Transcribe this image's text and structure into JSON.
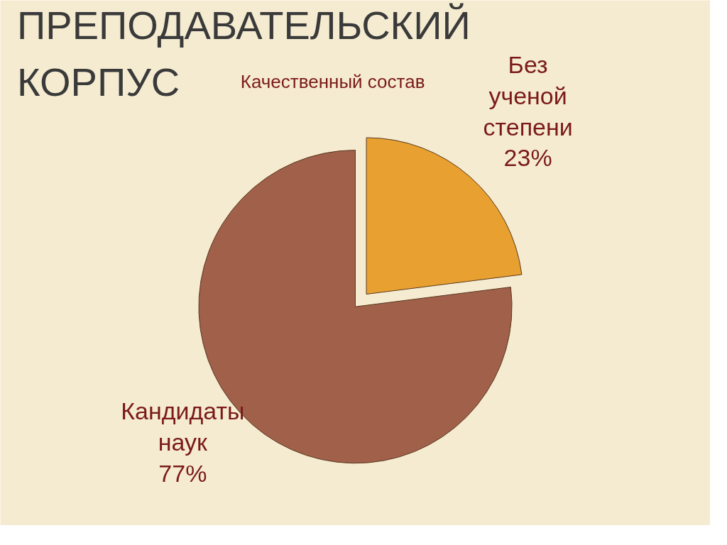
{
  "chart_data": {
    "type": "pie",
    "title": "ПРЕПОДАВАТЕЛЬСКИЙ КОРПУС",
    "subtitle": "Качественный состав",
    "categories": [
      "Без ученой степени",
      "Кандидаты наук"
    ],
    "values": [
      23,
      77
    ],
    "colors": [
      "#e8a030",
      "#a0604a"
    ],
    "value_labels": [
      "23%",
      "77%"
    ]
  }
}
